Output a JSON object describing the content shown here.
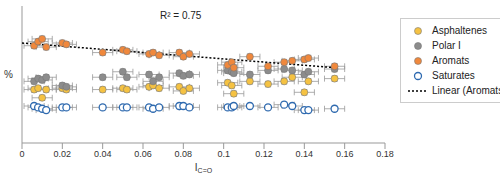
{
  "chart_data": {
    "type": "scatter",
    "xlabel": "I",
    "xlabel_subscript": "C=O",
    "ylabel": "%",
    "xlim": [
      0,
      0.18
    ],
    "xticks": [
      0,
      0.02,
      0.04,
      0.06,
      0.08,
      0.1,
      0.12,
      0.14,
      0.16,
      0.18
    ],
    "ylim": [
      -20,
      80
    ],
    "tick_labels": "x",
    "grid": false,
    "legend": "right",
    "annotation": "R² = 0.75",
    "x_error": 0.005,
    "y_error": 2,
    "x": [
      0.006,
      0.008,
      0.01,
      0.012,
      0.02,
      0.022,
      0.04,
      0.05,
      0.052,
      0.063,
      0.065,
      0.068,
      0.078,
      0.08,
      0.083,
      0.102,
      0.104,
      0.105,
      0.113,
      0.122,
      0.13,
      0.134,
      0.14,
      0.142,
      0.155
    ],
    "series": [
      {
        "name": "Asphaltenes",
        "color": "#f5c242",
        "marker": "circle",
        "values": [
          19,
          20,
          13,
          19,
          20,
          19,
          19,
          20,
          19,
          21,
          22,
          20,
          21,
          18,
          20,
          24,
          22,
          16,
          25,
          23,
          25,
          28,
          17,
          25,
          27
        ]
      },
      {
        "name": "Polar I",
        "color": "#8c8c8c",
        "marker": "circle",
        "values": [
          25,
          27,
          26,
          28,
          22,
          21,
          28,
          32,
          28,
          30,
          25,
          28,
          31,
          29,
          30,
          33,
          32,
          31,
          30,
          33,
          34,
          33,
          30,
          32,
          34
        ]
      },
      {
        "name": "Aromats",
        "color": "#f0883c",
        "marker": "circle",
        "values": [
          51,
          54,
          56,
          50,
          53,
          52,
          46,
          48,
          47,
          45,
          46,
          44,
          46,
          43,
          45,
          37,
          39,
          35,
          43,
          36,
          39,
          40,
          41,
          42,
          36
        ]
      },
      {
        "name": "Saturates",
        "color": "#2e6ab0",
        "marker": "open_circle",
        "values": [
          7,
          6,
          5,
          4,
          6,
          6,
          6,
          6,
          6,
          6,
          5,
          6,
          7,
          7,
          6,
          6,
          6,
          7,
          7,
          6,
          8,
          7,
          4,
          4,
          5
        ]
      },
      {
        "name": "Linear (Aromats)",
        "type": "line",
        "line_style": "dotted",
        "color": "#000000",
        "x": [
          0,
          0.155
        ],
        "values": [
          53,
          35
        ]
      }
    ]
  }
}
